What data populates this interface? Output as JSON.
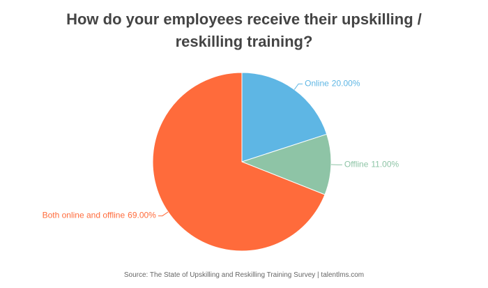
{
  "chart_data": {
    "type": "pie",
    "title": "How do your employees receive their upskilling / reskilling training?",
    "categories": [
      "Online",
      "Offline",
      "Both online and offline"
    ],
    "values": [
      20,
      11,
      69
    ],
    "value_labels": [
      "20.00%",
      "11.00%",
      "69.00%"
    ],
    "colors": [
      "#5eb6e4",
      "#8ec4a6",
      "#ff6b3b"
    ],
    "source": "Source: The State of Upskilling and Reskilling Training Survey | talentlms.com"
  }
}
